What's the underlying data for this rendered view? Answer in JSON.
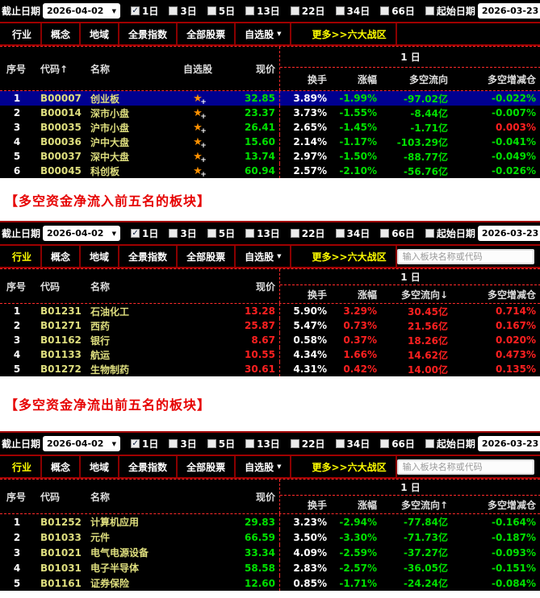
{
  "toolbar": {
    "end_date_label": "截止日期",
    "end_date_value": "2026-04-02",
    "periods": [
      {
        "label": "1日",
        "checked": true
      },
      {
        "label": "3日",
        "checked": false
      },
      {
        "label": "5日",
        "checked": false
      },
      {
        "label": "13日",
        "checked": false
      },
      {
        "label": "22日",
        "checked": false
      },
      {
        "label": "34日",
        "checked": false
      },
      {
        "label": "66日",
        "checked": false
      }
    ],
    "start_date": {
      "label": "起始日期",
      "checked": false,
      "value": "2026-03-23"
    }
  },
  "tabs": {
    "items": [
      {
        "label": "行业",
        "name": "tab-industry"
      },
      {
        "label": "概念",
        "name": "tab-concept"
      },
      {
        "label": "地域",
        "name": "tab-region"
      },
      {
        "label": "全景指数",
        "name": "tab-panorama-index"
      },
      {
        "label": "全部股票",
        "name": "tab-all-stocks"
      },
      {
        "label": "自选股",
        "name": "tab-watchlist",
        "dropdown": true
      },
      {
        "label": "更多>>六大战区",
        "name": "tab-more-zones",
        "highlight": true
      }
    ],
    "search_placeholder": "输入板块名称或代码"
  },
  "bands": [
    {
      "text": "【多空资金净流入前五名的板块】"
    },
    {
      "text": "【多空资金净流出前五名的板块】"
    }
  ],
  "panels": [
    {
      "name": "panel-index-boards",
      "type": "watch",
      "first_tab_active": false,
      "show_search": false,
      "left_columns": [
        "序号",
        "代码↑",
        "名称",
        "自选股",
        "现价"
      ],
      "group_label": "1 日",
      "group_columns": [
        "换手",
        "涨幅",
        "多空流向",
        "多空增减仓"
      ],
      "rows": [
        {
          "seq": "1",
          "code": "B00007",
          "name": "创业板",
          "price": "32.85",
          "price_tone": "down",
          "turnover": "3.89%",
          "change": "-1.99%",
          "change_tone": "down",
          "flow": "-97.02亿",
          "flow_tone": "down",
          "delta": "-0.022%",
          "delta_tone": "down",
          "selected": true
        },
        {
          "seq": "2",
          "code": "B00014",
          "name": "深市小盘",
          "price": "23.37",
          "price_tone": "down",
          "turnover": "3.73%",
          "change": "-1.55%",
          "change_tone": "down",
          "flow": "-8.44亿",
          "flow_tone": "down",
          "delta": "-0.007%",
          "delta_tone": "down",
          "selected": false
        },
        {
          "seq": "3",
          "code": "B00035",
          "name": "沪市小盘",
          "price": "26.41",
          "price_tone": "down",
          "turnover": "2.65%",
          "change": "-1.45%",
          "change_tone": "down",
          "flow": "-1.71亿",
          "flow_tone": "down",
          "delta": "0.003%",
          "delta_tone": "up",
          "selected": false
        },
        {
          "seq": "4",
          "code": "B00036",
          "name": "沪中大盘",
          "price": "15.60",
          "price_tone": "down",
          "turnover": "2.14%",
          "change": "-1.17%",
          "change_tone": "down",
          "flow": "-103.29亿",
          "flow_tone": "down",
          "delta": "-0.041%",
          "delta_tone": "down",
          "selected": false
        },
        {
          "seq": "5",
          "code": "B00037",
          "name": "深中大盘",
          "price": "13.74",
          "price_tone": "down",
          "turnover": "2.97%",
          "change": "-1.50%",
          "change_tone": "down",
          "flow": "-88.77亿",
          "flow_tone": "down",
          "delta": "-0.049%",
          "delta_tone": "down",
          "selected": false
        },
        {
          "seq": "6",
          "code": "B00045",
          "name": "科创板",
          "price": "60.94",
          "price_tone": "down",
          "turnover": "2.57%",
          "change": "-2.10%",
          "change_tone": "down",
          "flow": "-56.76亿",
          "flow_tone": "down",
          "delta": "-0.026%",
          "delta_tone": "down",
          "selected": false
        }
      ]
    },
    {
      "name": "panel-top-inflow-boards",
      "type": "plain",
      "first_tab_active": true,
      "show_search": true,
      "left_columns": [
        "序号",
        "代码",
        "名称",
        "现价"
      ],
      "group_label": "1 日",
      "group_columns": [
        "换手",
        "涨幅",
        "多空流向↓",
        "多空增减仓"
      ],
      "rows": [
        {
          "seq": "1",
          "code": "B01231",
          "name": "石油化工",
          "price": "13.28",
          "price_tone": "up",
          "turnover": "5.90%",
          "change": "3.29%",
          "change_tone": "up",
          "flow": "30.45亿",
          "flow_tone": "up",
          "delta": "0.714%",
          "delta_tone": "up",
          "selected": false
        },
        {
          "seq": "2",
          "code": "B01271",
          "name": "西药",
          "price": "25.87",
          "price_tone": "up",
          "turnover": "5.47%",
          "change": "0.73%",
          "change_tone": "up",
          "flow": "21.56亿",
          "flow_tone": "up",
          "delta": "0.167%",
          "delta_tone": "up",
          "selected": false
        },
        {
          "seq": "3",
          "code": "B01162",
          "name": "银行",
          "price": "8.67",
          "price_tone": "up",
          "turnover": "0.58%",
          "change": "0.37%",
          "change_tone": "up",
          "flow": "18.26亿",
          "flow_tone": "up",
          "delta": "0.020%",
          "delta_tone": "up",
          "selected": false
        },
        {
          "seq": "4",
          "code": "B01133",
          "name": "航运",
          "price": "10.55",
          "price_tone": "up",
          "turnover": "4.34%",
          "change": "1.66%",
          "change_tone": "up",
          "flow": "14.62亿",
          "flow_tone": "up",
          "delta": "0.473%",
          "delta_tone": "up",
          "selected": false
        },
        {
          "seq": "5",
          "code": "B01272",
          "name": "生物制药",
          "price": "30.61",
          "price_tone": "up",
          "turnover": "4.31%",
          "change": "0.42%",
          "change_tone": "up",
          "flow": "14.00亿",
          "flow_tone": "up",
          "delta": "0.135%",
          "delta_tone": "up",
          "selected": false
        }
      ]
    },
    {
      "name": "panel-top-outflow-boards",
      "type": "plain",
      "first_tab_active": true,
      "show_search": true,
      "left_columns": [
        "序号",
        "代码",
        "名称",
        "现价"
      ],
      "group_label": "1 日",
      "group_columns": [
        "换手",
        "涨幅",
        "多空流向↑",
        "多空增减仓"
      ],
      "rows": [
        {
          "seq": "1",
          "code": "B01252",
          "name": "计算机应用",
          "price": "29.83",
          "price_tone": "down",
          "turnover": "3.23%",
          "change": "-2.94%",
          "change_tone": "down",
          "flow": "-77.84亿",
          "flow_tone": "down",
          "delta": "-0.164%",
          "delta_tone": "down",
          "selected": false
        },
        {
          "seq": "2",
          "code": "B01033",
          "name": "元件",
          "price": "66.59",
          "price_tone": "down",
          "turnover": "3.50%",
          "change": "-3.30%",
          "change_tone": "down",
          "flow": "-71.73亿",
          "flow_tone": "down",
          "delta": "-0.187%",
          "delta_tone": "down",
          "selected": false
        },
        {
          "seq": "3",
          "code": "B01021",
          "name": "电气电源设备",
          "price": "33.34",
          "price_tone": "down",
          "turnover": "4.09%",
          "change": "-2.59%",
          "change_tone": "down",
          "flow": "-37.27亿",
          "flow_tone": "down",
          "delta": "-0.093%",
          "delta_tone": "down",
          "selected": false
        },
        {
          "seq": "4",
          "code": "B01031",
          "name": "电子半导体",
          "price": "58.58",
          "price_tone": "down",
          "turnover": "2.83%",
          "change": "-2.57%",
          "change_tone": "down",
          "flow": "-36.05亿",
          "flow_tone": "down",
          "delta": "-0.151%",
          "delta_tone": "down",
          "selected": false
        },
        {
          "seq": "5",
          "code": "B01161",
          "name": "证券保险",
          "price": "12.60",
          "price_tone": "down",
          "turnover": "0.85%",
          "change": "-1.71%",
          "change_tone": "down",
          "flow": "-24.24亿",
          "flow_tone": "down",
          "delta": "-0.084%",
          "delta_tone": "down",
          "selected": false
        }
      ]
    }
  ],
  "colors": {
    "positive_red": "#ff2020",
    "negative_green": "#00e000",
    "code_yellow": "#dede7e",
    "selected_row_blue": "#000090",
    "accent_border_red": "#a00000",
    "active_tab_yellow": "#ffff00",
    "band_text_red": "#e60000"
  },
  "icons": {
    "settings": "gear-icon",
    "filter": "funnel-icon",
    "watchlist_add": "star-plus-icon",
    "date_list": "list-grid-icon",
    "dropdown": "chevron-down-icon"
  }
}
